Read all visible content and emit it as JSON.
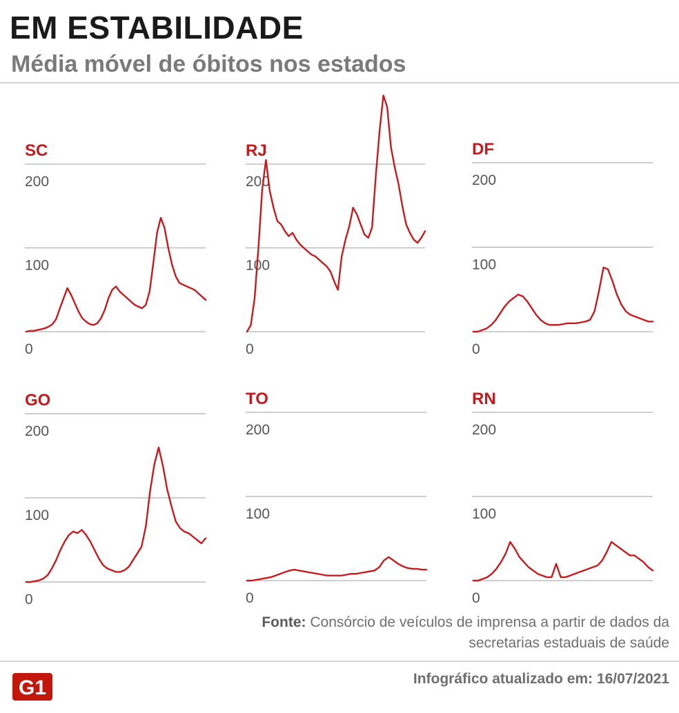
{
  "header": {
    "title": "EM ESTABILIDADE",
    "subtitle": "Média móvel de óbitos nos estados"
  },
  "footer": {
    "source_label": "Fonte:",
    "source_text": "Consórcio de veículos de imprensa a partir de dados da secretarias estaduais de saúde",
    "updated": "Infográfico atualizado em: 16/07/2021",
    "logo_text": "G1"
  },
  "colors": {
    "line": "#c8191d",
    "grid": "#b0b0b0",
    "label": "#c8191d",
    "tick": "#555555"
  },
  "chart_data": [
    {
      "type": "line",
      "title": "SC",
      "ylim": [
        0,
        200
      ],
      "yticks": [
        0,
        100,
        200
      ],
      "values": [
        0,
        1,
        1,
        2,
        3,
        4,
        6,
        9,
        15,
        28,
        40,
        52,
        44,
        34,
        24,
        16,
        12,
        9,
        8,
        10,
        16,
        26,
        40,
        50,
        54,
        48,
        44,
        40,
        36,
        32,
        30,
        28,
        32,
        48,
        82,
        118,
        136,
        124,
        100,
        80,
        66,
        58,
        56,
        54,
        52,
        50,
        46,
        42,
        38
      ]
    },
    {
      "type": "line",
      "title": "RJ",
      "ylim": [
        0,
        200
      ],
      "yticks": [
        0,
        100,
        200
      ],
      "values": [
        0,
        8,
        40,
        100,
        170,
        205,
        168,
        148,
        132,
        128,
        120,
        114,
        118,
        110,
        104,
        100,
        96,
        92,
        90,
        86,
        82,
        78,
        72,
        60,
        50,
        90,
        110,
        126,
        148,
        140,
        128,
        116,
        112,
        124,
        186,
        240,
        282,
        268,
        220,
        196,
        176,
        150,
        128,
        118,
        110,
        106,
        112,
        120
      ]
    },
    {
      "type": "line",
      "title": "DF",
      "ylim": [
        0,
        200
      ],
      "yticks": [
        0,
        100,
        200
      ],
      "values": [
        0,
        0,
        2,
        4,
        8,
        14,
        22,
        30,
        36,
        40,
        44,
        42,
        36,
        28,
        20,
        14,
        10,
        8,
        8,
        8,
        9,
        10,
        10,
        10,
        11,
        12,
        14,
        24,
        48,
        76,
        74,
        60,
        44,
        32,
        24,
        20,
        18,
        16,
        14,
        12,
        12
      ]
    },
    {
      "type": "line",
      "title": "GO",
      "ylim": [
        0,
        200
      ],
      "yticks": [
        0,
        100,
        200
      ],
      "values": [
        0,
        0,
        1,
        2,
        4,
        8,
        16,
        26,
        38,
        48,
        56,
        60,
        58,
        62,
        56,
        48,
        38,
        28,
        20,
        16,
        14,
        12,
        12,
        14,
        18,
        26,
        34,
        42,
        66,
        108,
        140,
        160,
        138,
        110,
        90,
        72,
        64,
        60,
        58,
        54,
        50,
        46,
        52
      ]
    },
    {
      "type": "line",
      "title": "TO",
      "ylim": [
        0,
        200
      ],
      "yticks": [
        0,
        100,
        200
      ],
      "values": [
        0,
        0,
        1,
        2,
        3,
        4,
        6,
        8,
        10,
        12,
        13,
        12,
        11,
        10,
        9,
        8,
        7,
        6,
        6,
        6,
        6,
        7,
        8,
        8,
        9,
        10,
        11,
        12,
        16,
        24,
        28,
        24,
        20,
        17,
        15,
        14,
        14,
        13,
        13
      ]
    },
    {
      "type": "line",
      "title": "RN",
      "ylim": [
        0,
        200
      ],
      "yticks": [
        0,
        100,
        200
      ],
      "values": [
        0,
        0,
        2,
        4,
        8,
        14,
        22,
        32,
        46,
        38,
        28,
        22,
        16,
        12,
        8,
        6,
        4,
        4,
        20,
        4,
        4,
        6,
        8,
        10,
        12,
        14,
        16,
        18,
        24,
        34,
        46,
        42,
        38,
        34,
        30,
        30,
        26,
        22,
        16,
        12
      ]
    }
  ]
}
